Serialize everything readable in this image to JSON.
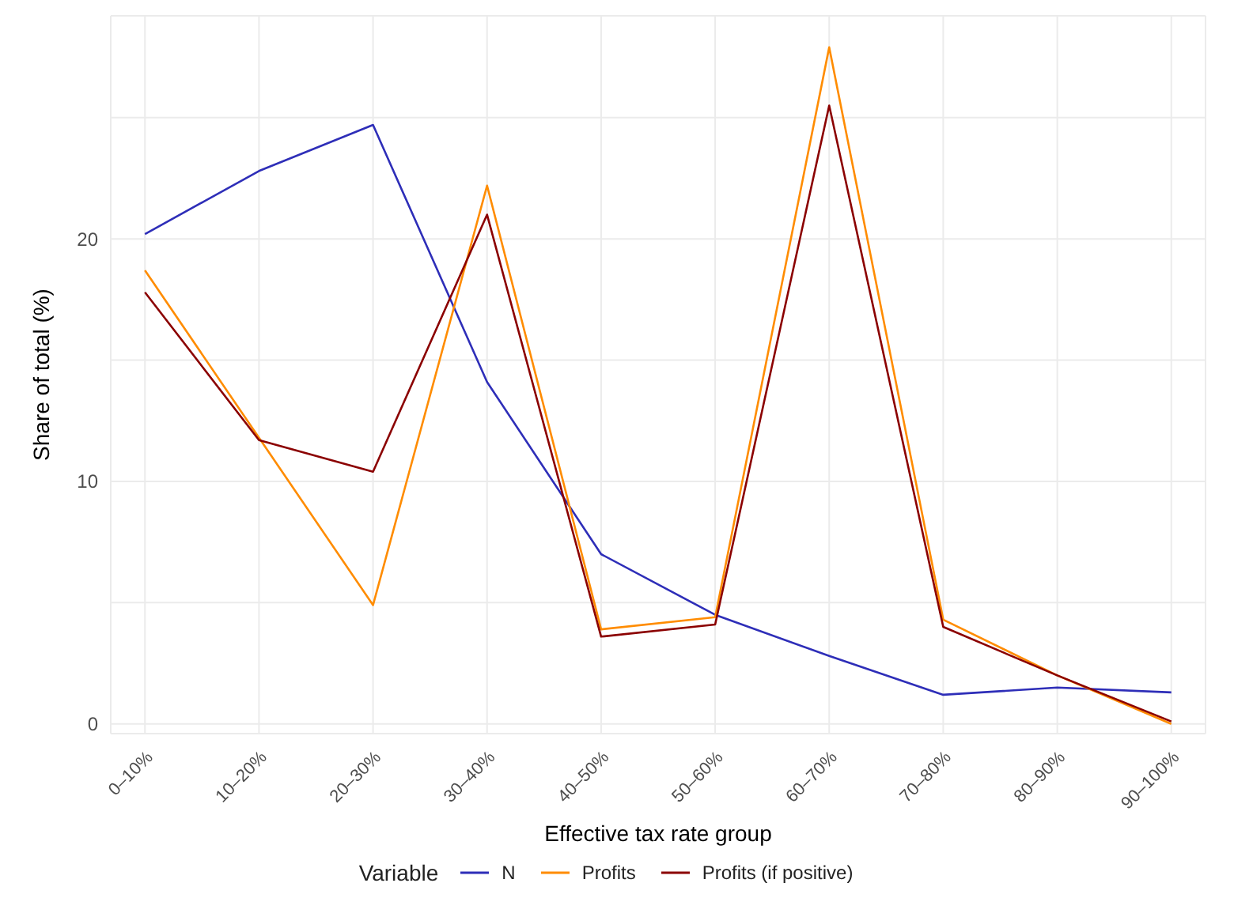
{
  "chart_data": {
    "type": "line",
    "xlabel": "Effective tax rate group",
    "ylabel": "Share of total (%)",
    "legend_title": "Variable",
    "legend": "bottom",
    "grid": true,
    "marker": "none",
    "line_style": "solid",
    "categories": [
      "0–10%",
      "10–20%",
      "20–30%",
      "30–40%",
      "40–50%",
      "50–60%",
      "60–70%",
      "70–80%",
      "80–90%",
      "90–100%"
    ],
    "ylim": [
      -0.4,
      29.2
    ],
    "yticks": [
      0,
      {
        "value": 5,
        "label": null
      },
      10,
      {
        "value": 15,
        "label": null
      },
      20,
      {
        "value": 25,
        "label": null
      }
    ],
    "series": [
      {
        "name": "N",
        "color": "#2e2eb8",
        "values": [
          20.2,
          22.8,
          24.7,
          14.1,
          7.0,
          4.5,
          2.8,
          1.2,
          1.5,
          1.3
        ]
      },
      {
        "name": "Profits",
        "color": "#ff8c00",
        "values": [
          18.7,
          11.8,
          4.9,
          22.2,
          3.9,
          4.4,
          27.9,
          4.3,
          2.0,
          0
        ]
      },
      {
        "name": "Profits (if positive)",
        "color": "#8b0000",
        "values": [
          17.8,
          11.7,
          10.4,
          21.0,
          3.6,
          4.1,
          25.5,
          4.0,
          2.0,
          0.1
        ]
      }
    ]
  }
}
